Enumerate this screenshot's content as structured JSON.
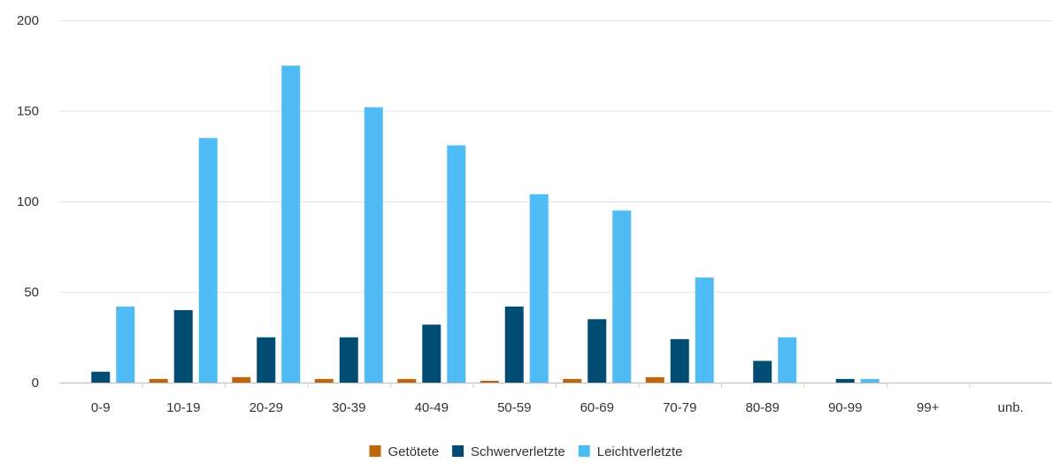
{
  "chart_data": {
    "type": "bar",
    "title": "",
    "xlabel": "",
    "ylabel": "",
    "ylim": [
      0,
      200
    ],
    "yticks": [
      0,
      50,
      100,
      150,
      200
    ],
    "grid": true,
    "legend_position": "bottom",
    "categories": [
      "0-9",
      "10-19",
      "20-29",
      "30-39",
      "40-49",
      "50-59",
      "60-69",
      "70-79",
      "80-89",
      "90-99",
      "99+",
      "unb."
    ],
    "series": [
      {
        "name": "Getötete",
        "color": "#c0650a",
        "values": [
          0,
          2,
          3,
          2,
          2,
          1,
          2,
          3,
          0,
          0,
          0,
          0
        ]
      },
      {
        "name": "Schwerverletzte",
        "color": "#004c73",
        "values": [
          6,
          40,
          25,
          25,
          32,
          42,
          35,
          24,
          12,
          2,
          0,
          0
        ]
      },
      {
        "name": "Leichtverletzte",
        "color": "#4fbcf5",
        "values": [
          42,
          135,
          175,
          152,
          131,
          104,
          95,
          58,
          25,
          2,
          0,
          0
        ]
      }
    ]
  }
}
